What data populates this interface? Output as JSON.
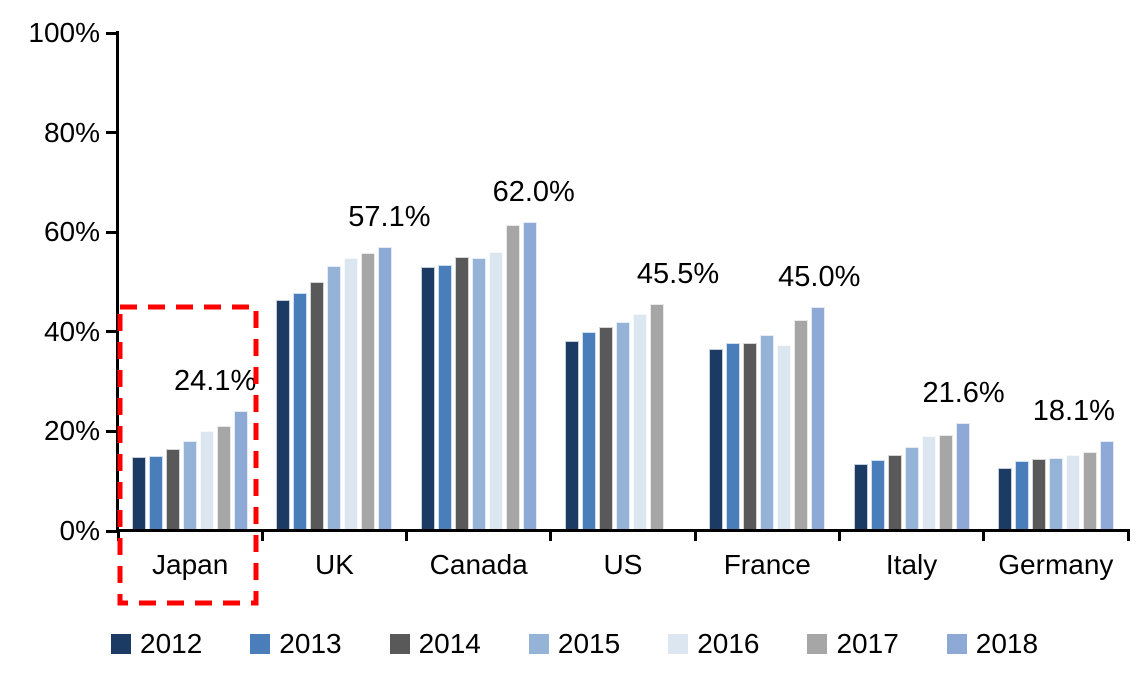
{
  "chart_data": {
    "type": "bar",
    "title": "",
    "categories": [
      "Japan",
      "UK",
      "Canada",
      "US",
      "France",
      "Italy",
      "Germany"
    ],
    "series": [
      {
        "name": "2012",
        "color": "#1B3A64",
        "values": [
          14.8,
          46.3,
          53.0,
          38.1,
          36.5,
          13.4,
          12.6
        ]
      },
      {
        "name": "2013",
        "color": "#4A7EBB",
        "values": [
          15.0,
          47.8,
          53.4,
          40.0,
          37.8,
          14.2,
          14.0
        ]
      },
      {
        "name": "2014",
        "color": "#595959",
        "values": [
          16.5,
          50.0,
          55.0,
          41.0,
          37.7,
          15.2,
          14.4
        ]
      },
      {
        "name": "2015",
        "color": "#95B3D7",
        "values": [
          18.1,
          53.3,
          54.8,
          42.0,
          39.4,
          16.8,
          14.7
        ]
      },
      {
        "name": "2016",
        "color": "#DCE6F1",
        "values": [
          20.0,
          54.8,
          56.1,
          43.5,
          37.3,
          19.0,
          15.2
        ]
      },
      {
        "name": "2017",
        "color": "#A6A6A6",
        "values": [
          21.1,
          55.8,
          61.4,
          45.5,
          42.3,
          19.2,
          15.8
        ]
      },
      {
        "name": "2018",
        "color": "#8FA9D6",
        "values": [
          24.1,
          57.1,
          62.0,
          null,
          45.0,
          21.6,
          18.1
        ]
      }
    ],
    "data_labels": [
      "24.1%",
      "57.1%",
      "62.0%",
      "45.5%",
      "45.0%",
      "21.6%",
      "18.1%"
    ],
    "y_ticks": [
      {
        "label": "100%",
        "value": 100
      },
      {
        "label": "80%",
        "value": 80
      },
      {
        "label": "60%",
        "value": 60
      },
      {
        "label": "40%",
        "value": 40
      },
      {
        "label": "20%",
        "value": 20
      },
      {
        "label": "0%",
        "value": 0
      }
    ],
    "ylim": [
      0,
      100
    ],
    "grid": false,
    "legend_position": "bottom",
    "axis_color": "#000000",
    "highlight": {
      "category": "Japan",
      "shape": "dashed-rectangle",
      "color": "#FF0000"
    }
  }
}
